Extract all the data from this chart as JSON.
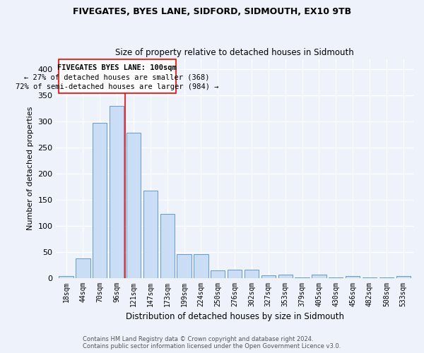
{
  "title": "FIVEGATES, BYES LANE, SIDFORD, SIDMOUTH, EX10 9TB",
  "subtitle": "Size of property relative to detached houses in Sidmouth",
  "xlabel": "Distribution of detached houses by size in Sidmouth",
  "ylabel": "Number of detached properties",
  "bar_color": "#c9ddf5",
  "bar_edge_color": "#6699cc",
  "categories": [
    "18sqm",
    "44sqm",
    "70sqm",
    "96sqm",
    "121sqm",
    "147sqm",
    "173sqm",
    "199sqm",
    "224sqm",
    "250sqm",
    "276sqm",
    "302sqm",
    "327sqm",
    "353sqm",
    "379sqm",
    "405sqm",
    "430sqm",
    "456sqm",
    "482sqm",
    "508sqm",
    "533sqm"
  ],
  "values": [
    4,
    38,
    297,
    330,
    278,
    167,
    123,
    45,
    46,
    14,
    15,
    15,
    5,
    6,
    1,
    6,
    1,
    4,
    1,
    1,
    3
  ],
  "ylim": [
    0,
    420
  ],
  "yticks": [
    0,
    50,
    100,
    150,
    200,
    250,
    300,
    350,
    400
  ],
  "red_line_index": 3.5,
  "annotation_line1": "FIVEGATES BYES LANE: 100sqm",
  "annotation_line2": "← 27% of detached houses are smaller (368)",
  "annotation_line3": "72% of semi-detached houses are larger (984) →",
  "footer_line1": "Contains HM Land Registry data © Crown copyright and database right 2024.",
  "footer_line2": "Contains public sector information licensed under the Open Government Licence v3.0.",
  "background_color": "#edf2fb",
  "grid_color": "#ffffff",
  "title_fontsize": 9,
  "subtitle_fontsize": 8.5
}
